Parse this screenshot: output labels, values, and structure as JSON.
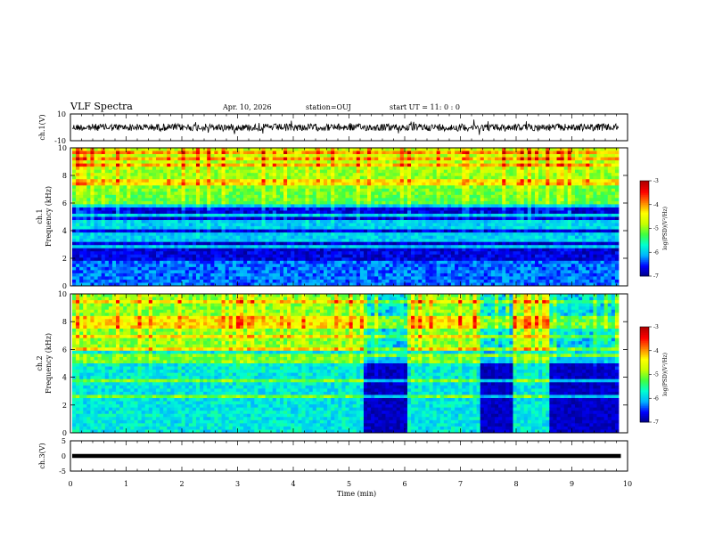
{
  "header": {
    "title": "VLF Spectra",
    "date": "Apr. 10, 2026",
    "station": "station=OUJ",
    "start": "start  UT =   11: 0  : 0"
  },
  "chart_data": [
    {
      "type": "line",
      "name": "ch1-waveform",
      "ylabel": "ch.1(V)",
      "ylim": [
        -10,
        10
      ],
      "yticks": [
        "10",
        "-10"
      ],
      "xlim": [
        0,
        10
      ]
    },
    {
      "type": "heatmap",
      "name": "ch1-spectrogram",
      "ylabel": "ch.1\nFrequency (kHz)",
      "ylabel_lines": [
        "ch.1",
        "Frequency (kHz)"
      ],
      "ylim": [
        0,
        10
      ],
      "yticks": [
        "0",
        "2",
        "4",
        "6",
        "8",
        "10"
      ],
      "xlim": [
        0,
        10
      ],
      "colorbar": {
        "label": "log(PSD)(V²/Hz)",
        "range": [
          -7,
          -3
        ],
        "ticks": [
          "-3",
          "-4",
          "-5",
          "-6",
          "-7"
        ]
      }
    },
    {
      "type": "heatmap",
      "name": "ch2-spectrogram",
      "ylabel": "ch.2\nFrequency (kHz)",
      "ylabel_lines": [
        "ch.2",
        "Frequency (kHz)"
      ],
      "ylim": [
        0,
        10
      ],
      "yticks": [
        "0",
        "2",
        "4",
        "6",
        "8",
        "10"
      ],
      "xlim": [
        0,
        10
      ],
      "colorbar": {
        "label": "log(PSD)(V²/Hz)",
        "range": [
          -7,
          -3
        ],
        "ticks": [
          "-3",
          "-4",
          "-5",
          "-6",
          "-7"
        ]
      },
      "quiet_intervals_min": [
        [
          5.2,
          6.0
        ],
        [
          7.3,
          7.9
        ],
        [
          8.5,
          9.8
        ]
      ]
    },
    {
      "type": "line",
      "name": "ch3-waveform",
      "ylabel": "ch.3(V)",
      "ylim": [
        -5,
        5
      ],
      "yticks": [
        "5",
        "0",
        "-5"
      ],
      "xlim": [
        0,
        10
      ],
      "data_end_min": 9.8
    }
  ],
  "x_axis": {
    "label": "Time  (min)",
    "ticks": [
      "0",
      "1",
      "2",
      "3",
      "4",
      "5",
      "6",
      "7",
      "8",
      "9",
      "10"
    ],
    "range": [
      0,
      10
    ]
  },
  "colors": {
    "frame": "#000000",
    "colormap": [
      "#000080",
      "#0000ff",
      "#00b4ff",
      "#00ffd0",
      "#40ff40",
      "#c8ff00",
      "#ffff00",
      "#ff8000",
      "#ff0000",
      "#b00000"
    ]
  }
}
